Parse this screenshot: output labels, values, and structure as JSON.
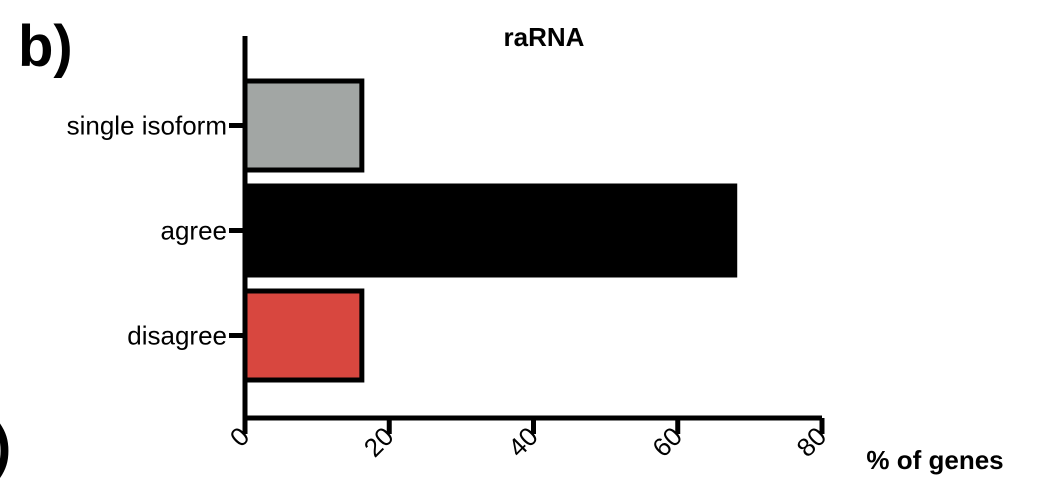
{
  "panel_label": "b)",
  "cut_panel_label": ")",
  "chart_data": {
    "type": "bar",
    "orientation": "horizontal",
    "title": "raRNA",
    "xlabel": "% of genes",
    "ylabel": "",
    "categories": [
      "single isoform",
      "agree",
      "disagree"
    ],
    "values": [
      16.2,
      67.9,
      16.2
    ],
    "colors": [
      "#a2a6a4",
      "#000000",
      "#d8473f"
    ],
    "xlim": [
      0,
      80
    ],
    "xticks": [
      0,
      20,
      40,
      60,
      80
    ],
    "grid": false,
    "legend": "none"
  }
}
